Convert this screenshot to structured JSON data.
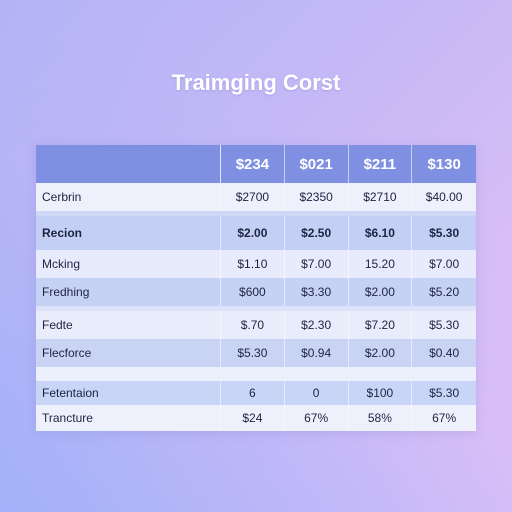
{
  "title": "Traimging Corst",
  "table": {
    "header": {
      "label": "",
      "values": [
        "$234",
        "$021",
        "$211",
        "$130"
      ]
    },
    "rows": [
      {
        "label": "Cerbrin",
        "values": [
          "$2700",
          "$2350",
          "$2710",
          "$40.00"
        ]
      },
      {
        "label": "Recion",
        "values": [
          "$2.00",
          "$2.50",
          "$6.10",
          "$5.30"
        ]
      },
      {
        "label": "Mcking",
        "values": [
          "$1.10",
          "$7.00",
          "15.20",
          "$7.00"
        ]
      },
      {
        "label": "Fredhing",
        "values": [
          "$600",
          "$3.30",
          "$2.00",
          "$5.20"
        ]
      },
      {
        "label": "Fedte",
        "values": [
          "$.70",
          "$2.30",
          "$7.20",
          "$5.30"
        ]
      },
      {
        "label": "Flecforce",
        "values": [
          "$5.30",
          "$0.94",
          "$2.00",
          "$0.40"
        ]
      },
      {
        "label": "Fetentaion",
        "values": [
          "6",
          "0",
          "$100",
          "$5.30"
        ]
      },
      {
        "label": "Trancture",
        "values": [
          "$24",
          "67%",
          "58%",
          "67%"
        ]
      }
    ]
  }
}
